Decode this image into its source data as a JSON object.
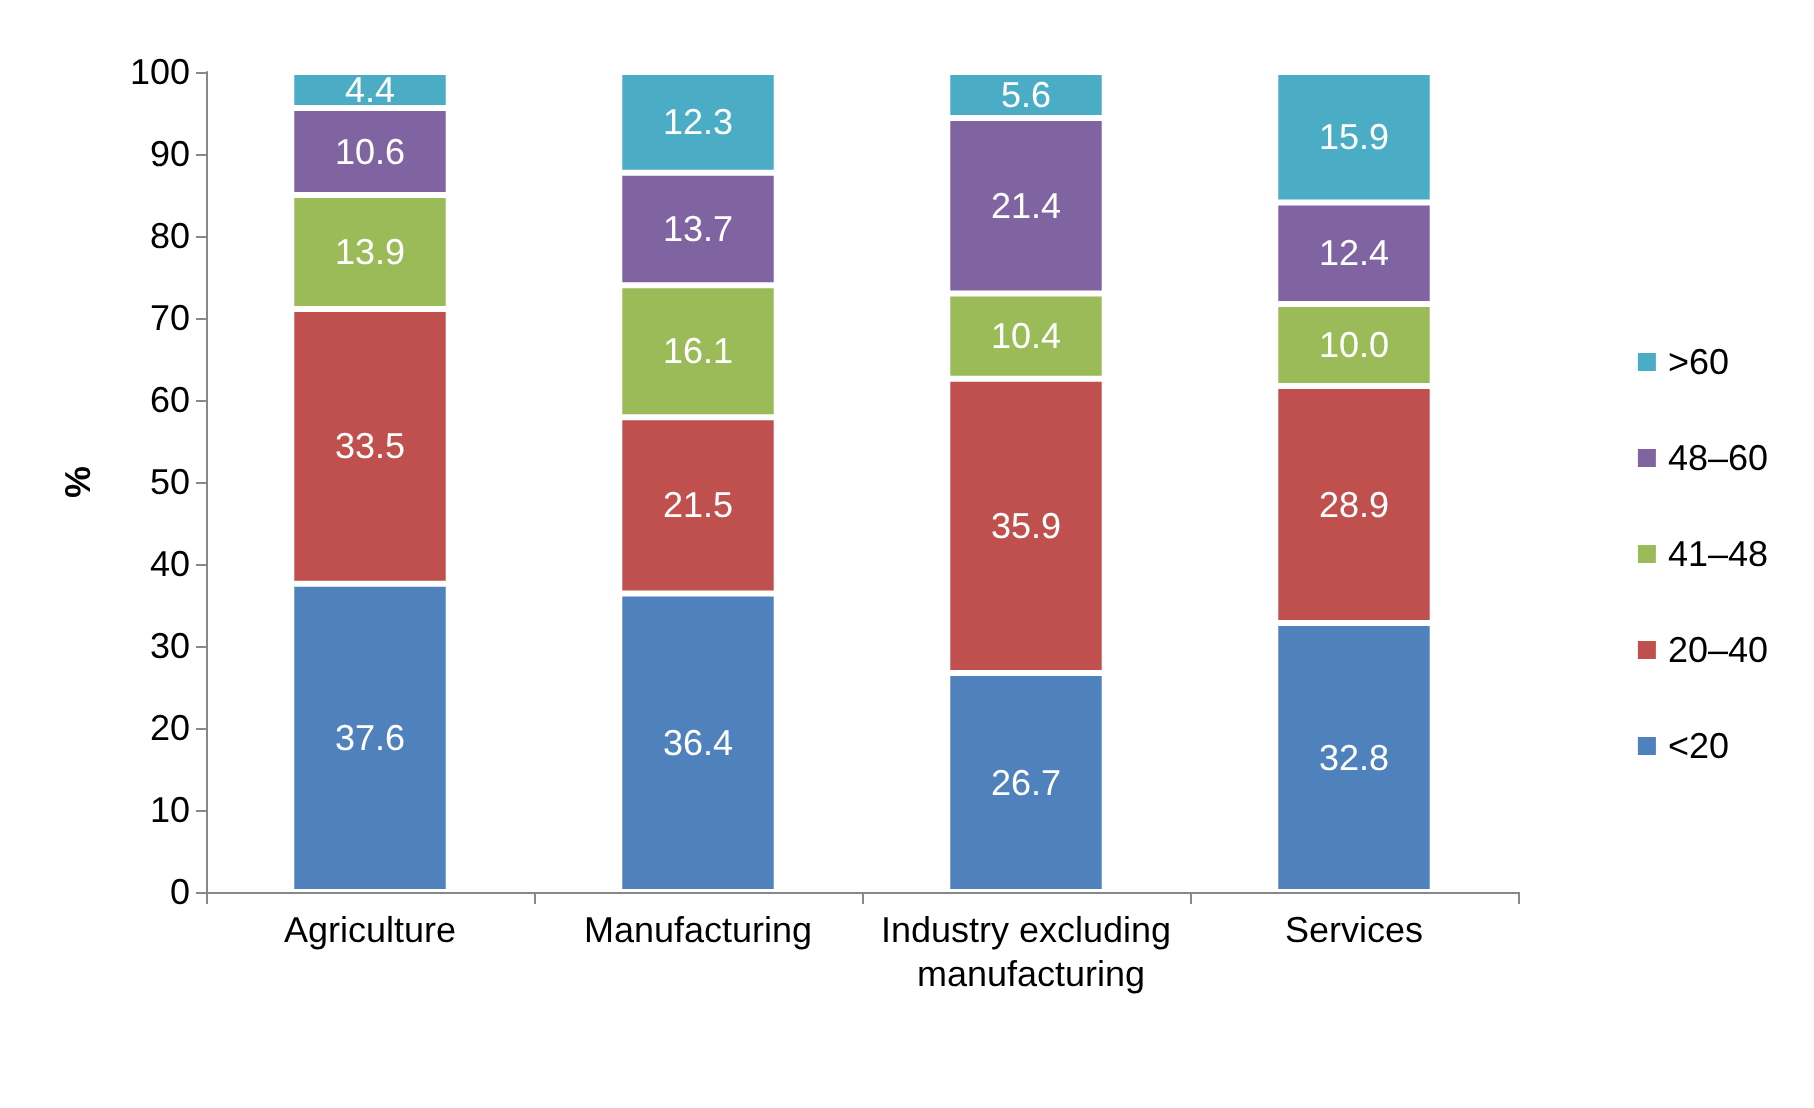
{
  "chart_data": {
    "type": "bar",
    "stacked": true,
    "ylabel": "%",
    "categories": [
      "Agriculture",
      "Manufacturing",
      "Industry excluding manufacturing",
      "Services"
    ],
    "series": [
      {
        "name": "<20",
        "color": "#4f81bd",
        "values": [
          37.6,
          36.4,
          26.7,
          32.8
        ],
        "value_labels": [
          "37.6",
          "36.4",
          "26.7",
          "32.8"
        ]
      },
      {
        "name": "20–40",
        "color": "#c0504d",
        "values": [
          33.5,
          21.5,
          35.9,
          28.9
        ],
        "value_labels": [
          "33.5",
          "21.5",
          "35.9",
          "28.9"
        ]
      },
      {
        "name": "41–48",
        "color": "#9bbb59",
        "values": [
          13.9,
          16.1,
          10.4,
          10.0
        ],
        "value_labels": [
          "13.9",
          "16.1",
          "10.4",
          "10.0"
        ]
      },
      {
        "name": "48–60",
        "color": "#8064a2",
        "values": [
          10.6,
          13.7,
          21.4,
          12.4
        ],
        "value_labels": [
          "10.6",
          "13.7",
          "21.4",
          "12.4"
        ]
      },
      {
        "name": ">60",
        "color": "#4bacc6",
        "values": [
          4.4,
          12.3,
          5.6,
          15.9
        ],
        "value_labels": [
          "4.4",
          "12.3",
          "5.6",
          "15.9"
        ]
      }
    ],
    "ylim": [
      0,
      100
    ],
    "yticks": [
      0,
      10,
      20,
      30,
      40,
      50,
      60,
      70,
      80,
      90,
      100
    ],
    "grid": false,
    "legend": "right"
  }
}
